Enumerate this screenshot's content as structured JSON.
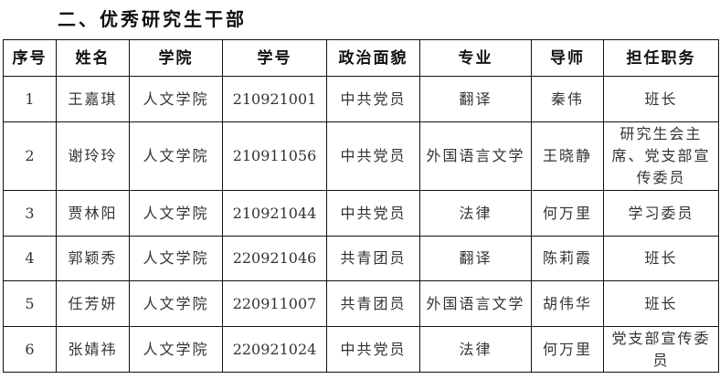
{
  "title": "二、优秀研究生干部",
  "headers": [
    "序号",
    "姓名",
    "学院",
    "学号",
    "政治面貌",
    "专业",
    "导师",
    "担任职务"
  ],
  "rows": [
    [
      "1",
      "王嘉琪",
      "人文学院",
      "210921001",
      "中共党员",
      "翻译",
      "秦伟",
      "班长"
    ],
    [
      "2",
      "谢玲玲",
      "人文学院",
      "210911056",
      "中共党员",
      "外国语言文学",
      "王晓静",
      "研究生会主席、党支部宣传委员"
    ],
    [
      "3",
      "贾林阳",
      "人文学院",
      "210921044",
      "中共党员",
      "法律",
      "何万里",
      "学习委员"
    ],
    [
      "4",
      "郭颖秀",
      "人文学院",
      "220921046",
      "共青团员",
      "翻译",
      "陈莉霞",
      "班长"
    ],
    [
      "5",
      "任芳妍",
      "人文学院",
      "220911007",
      "共青团员",
      "外国语言文学",
      "胡伟华",
      "班长"
    ],
    [
      "6",
      "张婧祎",
      "人文学院",
      "220921024",
      "中共党员",
      "法律",
      "何万里",
      "党支部宣传委员"
    ]
  ]
}
